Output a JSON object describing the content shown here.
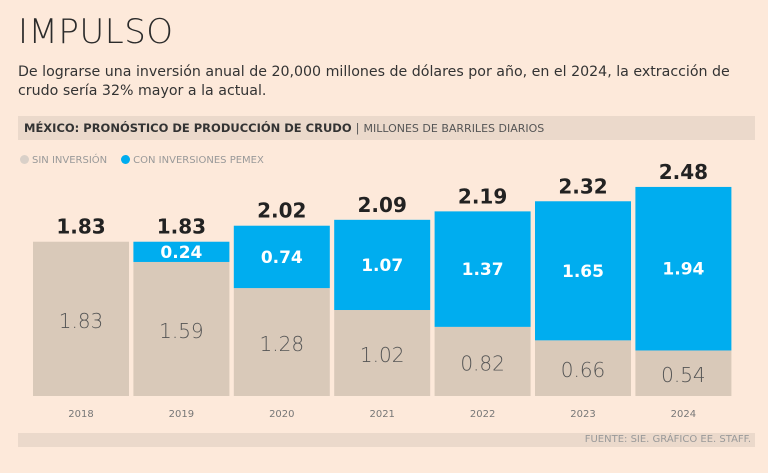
{
  "title": "IMPULSO",
  "subtitle": "De lograrse una inversión anual de 20,000 millones de dólares por año, en el 2024, la extracción de crudo sería 32% mayor a la actual.",
  "chart_data": {
    "type": "bar",
    "stacked": true,
    "title": "MÉXICO: PRONÓSTICO DE PRODUCCIÓN DE CRUDO",
    "unit": "MILLONES DE BARRILES DIARIOS",
    "categories": [
      "2018",
      "2019",
      "2020",
      "2021",
      "2022",
      "2023",
      "2024"
    ],
    "series": [
      {
        "name": "SIN INVERSIÓN",
        "color": "#d9c9b9",
        "values": [
          1.83,
          1.59,
          1.28,
          1.02,
          0.82,
          0.66,
          0.54
        ]
      },
      {
        "name": "CON INVERSIONES PEMEX",
        "color": "#00adef",
        "values": [
          null,
          0.24,
          0.74,
          1.07,
          1.37,
          1.65,
          1.94
        ]
      }
    ],
    "totals": [
      1.83,
      1.83,
      2.02,
      2.09,
      2.19,
      2.32,
      2.48
    ],
    "legend": "top-left",
    "grid": false
  },
  "source": "FUENTE: SIE. GRÁFICO EE. STAFF."
}
